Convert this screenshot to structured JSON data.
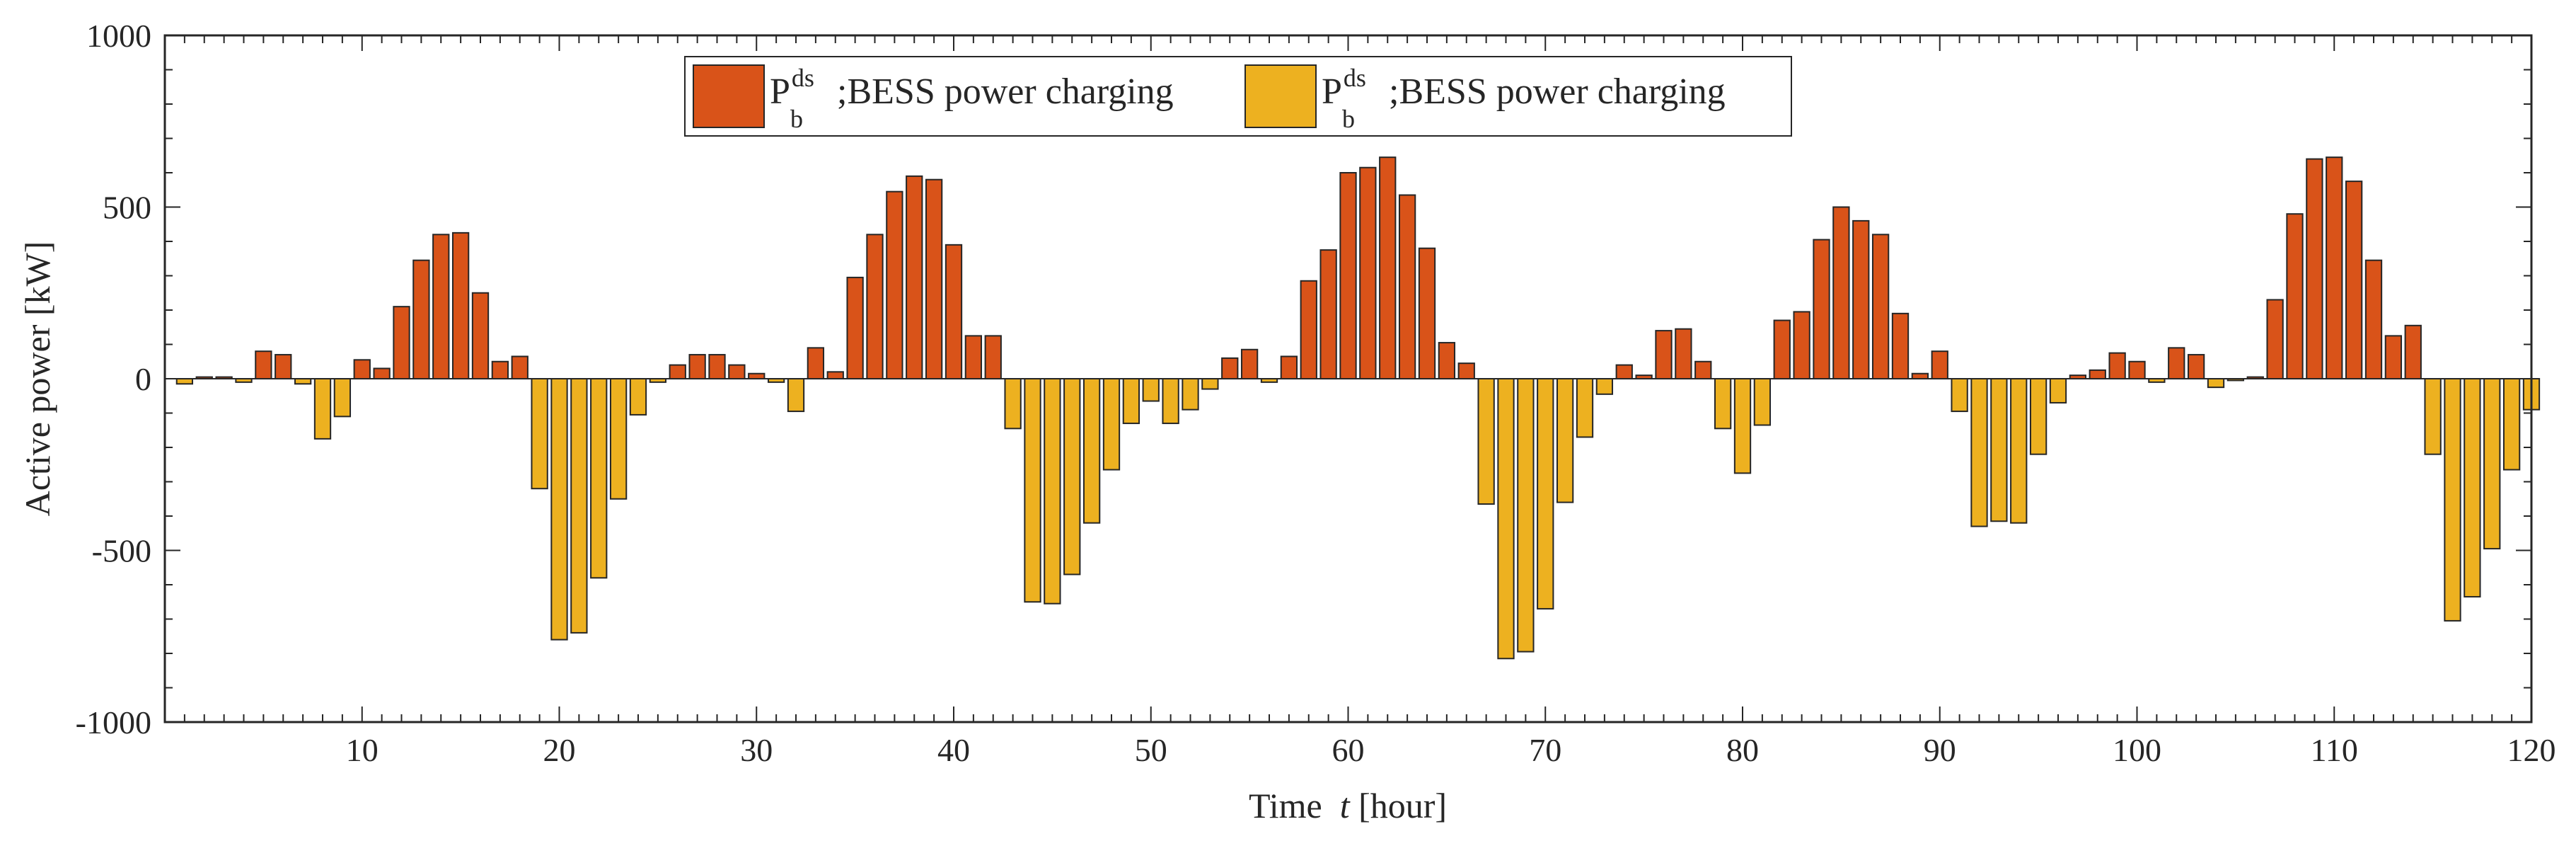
{
  "chart_data": {
    "type": "bar",
    "title": "",
    "xlabel": {
      "prefix": "Time",
      "var": "t",
      "unit": "[hour]"
    },
    "ylabel": "Active power  [kW]",
    "xlim": [
      0,
      120
    ],
    "ylim": [
      -1000,
      1000
    ],
    "xticks": [
      10,
      20,
      30,
      40,
      50,
      60,
      70,
      80,
      90,
      100,
      110,
      120
    ],
    "yticks": [
      -1000,
      -500,
      0,
      500,
      1000
    ],
    "grid": false,
    "legend_position": "top-center",
    "x": [
      1,
      2,
      3,
      4,
      5,
      6,
      7,
      8,
      9,
      10,
      11,
      12,
      13,
      14,
      15,
      16,
      17,
      18,
      19,
      20,
      21,
      22,
      23,
      24,
      25,
      26,
      27,
      28,
      29,
      30,
      31,
      32,
      33,
      34,
      35,
      36,
      37,
      38,
      39,
      40,
      41,
      42,
      43,
      44,
      45,
      46,
      47,
      48,
      49,
      50,
      51,
      52,
      53,
      54,
      55,
      56,
      57,
      58,
      59,
      60,
      61,
      62,
      63,
      64,
      65,
      66,
      67,
      68,
      69,
      70,
      71,
      72,
      73,
      74,
      75,
      76,
      77,
      78,
      79,
      80,
      81,
      82,
      83,
      84,
      85,
      86,
      87,
      88,
      89,
      90,
      91,
      92,
      93,
      94,
      95,
      96,
      97,
      98,
      99,
      100,
      101,
      102,
      103,
      104,
      105,
      106,
      107,
      108,
      109,
      110,
      111,
      112,
      113,
      114,
      115,
      116,
      117,
      118,
      119,
      120
    ],
    "values": [
      -15,
      5,
      5,
      -10,
      80,
      70,
      -15,
      -175,
      -110,
      55,
      30,
      210,
      345,
      420,
      425,
      250,
      50,
      65,
      -320,
      -760,
      -740,
      -580,
      -350,
      -105,
      -10,
      40,
      70,
      70,
      40,
      15,
      -10,
      -95,
      90,
      20,
      295,
      420,
      545,
      590,
      580,
      390,
      125,
      125,
      -145,
      -650,
      -655,
      -570,
      -420,
      -265,
      -130,
      -65,
      -130,
      -90,
      -30,
      60,
      85,
      -10,
      65,
      285,
      375,
      600,
      615,
      645,
      535,
      380,
      105,
      45,
      -365,
      -815,
      -795,
      -670,
      -360,
      -170,
      -45,
      40,
      10,
      140,
      145,
      50,
      -145,
      -275,
      -135,
      170,
      195,
      405,
      500,
      460,
      420,
      190,
      15,
      80,
      -95,
      -430,
      -415,
      -420,
      -220,
      -70,
      10,
      25,
      75,
      50,
      -10,
      90,
      70,
      -25,
      -5,
      5,
      230,
      480,
      640,
      645,
      575,
      345,
      125,
      155,
      -220,
      -705,
      -635,
      -495,
      -265,
      -90
    ],
    "series": [
      {
        "name": "BESS power charging",
        "sym": "P",
        "sub": "b",
        "sup": "ds",
        "prefix": ";",
        "color": "#D95319",
        "sign": "positive"
      },
      {
        "name": "BESS power charging",
        "sym": "P",
        "sub": "b",
        "sup": "ds",
        "prefix": ";",
        "color": "#EDB120",
        "sign": "negative"
      }
    ]
  }
}
